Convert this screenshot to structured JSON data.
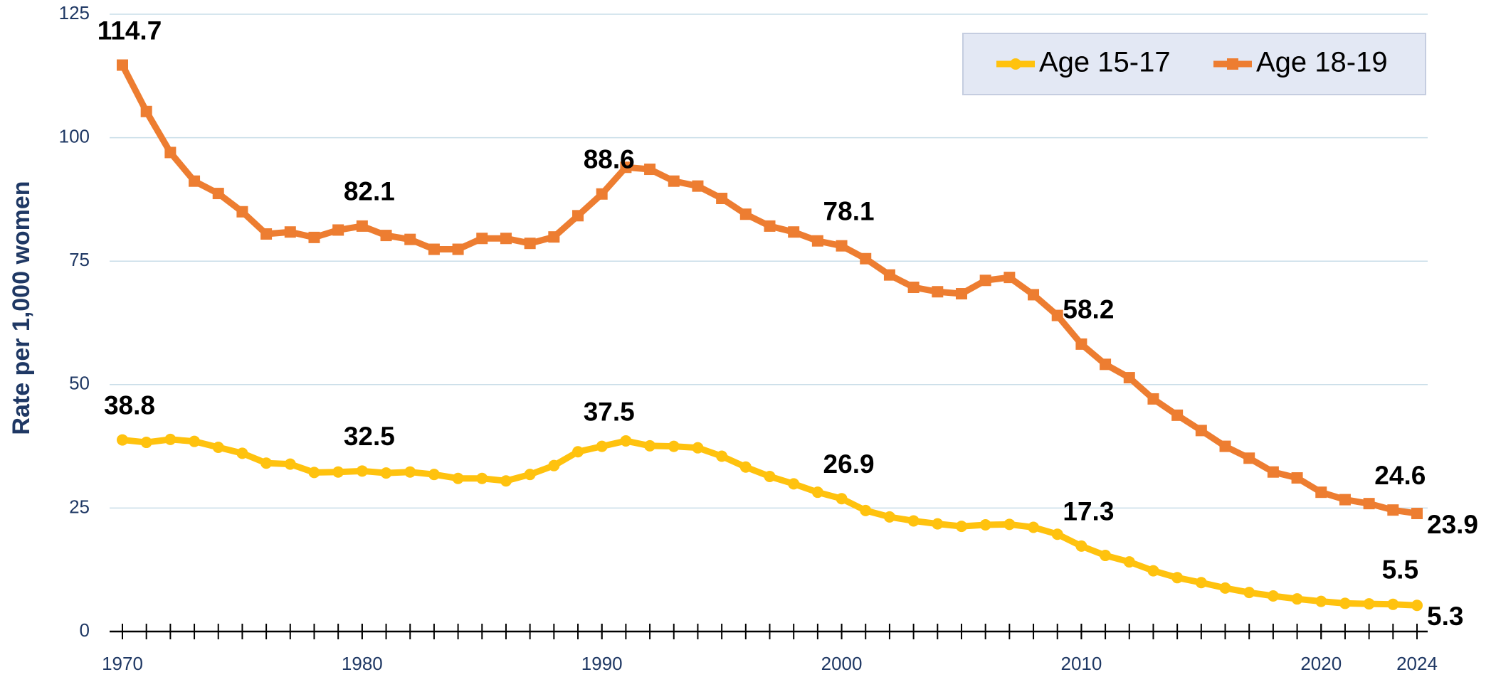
{
  "chart_data": {
    "type": "line",
    "y_label": "Rate per 1,000 women",
    "x": [
      1970,
      1971,
      1972,
      1973,
      1974,
      1975,
      1976,
      1977,
      1978,
      1979,
      1980,
      1981,
      1982,
      1983,
      1984,
      1985,
      1986,
      1987,
      1988,
      1989,
      1990,
      1991,
      1992,
      1993,
      1994,
      1995,
      1996,
      1997,
      1998,
      1999,
      2000,
      2001,
      2002,
      2003,
      2004,
      2005,
      2006,
      2007,
      2008,
      2009,
      2010,
      2011,
      2012,
      2013,
      2014,
      2015,
      2016,
      2017,
      2018,
      2019,
      2020,
      2021,
      2022,
      2023,
      2024
    ],
    "series": [
      {
        "name": "Age 15-17",
        "color": "#FFC20E",
        "marker": "circle",
        "values": [
          38.8,
          38.3,
          38.9,
          38.5,
          37.3,
          36.1,
          34.1,
          33.9,
          32.2,
          32.3,
          32.5,
          32.1,
          32.3,
          31.8,
          31.0,
          31.0,
          30.5,
          31.8,
          33.6,
          36.4,
          37.5,
          38.6,
          37.6,
          37.5,
          37.2,
          35.5,
          33.3,
          31.4,
          29.9,
          28.2,
          26.9,
          24.5,
          23.2,
          22.4,
          21.8,
          21.3,
          21.6,
          21.7,
          21.1,
          19.7,
          17.3,
          15.4,
          14.1,
          12.3,
          10.9,
          9.9,
          8.8,
          7.9,
          7.2,
          6.6,
          6.1,
          5.7,
          5.6,
          5.5,
          5.3
        ],
        "value_labels": [
          "38.8",
          null,
          null,
          null,
          null,
          null,
          null,
          null,
          null,
          null,
          "32.5",
          null,
          null,
          null,
          null,
          null,
          null,
          null,
          null,
          null,
          "37.5",
          null,
          null,
          null,
          null,
          null,
          null,
          null,
          null,
          null,
          "26.9",
          null,
          null,
          null,
          null,
          null,
          null,
          null,
          null,
          null,
          "17.3",
          null,
          null,
          null,
          null,
          null,
          null,
          null,
          null,
          null,
          null,
          null,
          null,
          "5.5",
          "5.3"
        ]
      },
      {
        "name": "Age 18-19",
        "color": "#ED7D31",
        "marker": "square",
        "values": [
          114.7,
          105.3,
          97.0,
          91.2,
          88.7,
          85.0,
          80.5,
          80.9,
          79.8,
          81.3,
          82.1,
          80.2,
          79.4,
          77.4,
          77.4,
          79.6,
          79.6,
          78.6,
          79.9,
          84.2,
          88.6,
          94.0,
          93.6,
          91.2,
          90.2,
          87.7,
          84.5,
          82.1,
          80.9,
          79.1,
          78.1,
          75.5,
          72.2,
          69.7,
          68.8,
          68.4,
          71.1,
          71.7,
          68.2,
          64.0,
          58.2,
          54.1,
          51.4,
          47.1,
          43.8,
          40.7,
          37.5,
          35.1,
          32.3,
          31.1,
          28.2,
          26.7,
          25.9,
          24.6,
          23.9
        ],
        "value_labels": [
          "114.7",
          null,
          null,
          null,
          null,
          null,
          null,
          null,
          null,
          null,
          "82.1",
          null,
          null,
          null,
          null,
          null,
          null,
          null,
          null,
          null,
          "88.6",
          null,
          null,
          null,
          null,
          null,
          null,
          null,
          null,
          null,
          "78.1",
          null,
          null,
          null,
          null,
          null,
          null,
          null,
          null,
          null,
          "58.2",
          null,
          null,
          null,
          null,
          null,
          null,
          null,
          null,
          null,
          null,
          null,
          null,
          "24.6",
          "23.9"
        ]
      }
    ],
    "xlim": [
      1970,
      2024
    ],
    "xticks": [
      1970,
      1980,
      1990,
      2000,
      2010,
      2020,
      2024
    ],
    "ylim": [
      0,
      125
    ],
    "yticks": [
      0,
      25,
      50,
      75,
      100,
      125
    ],
    "grid": true,
    "legend": "top-right"
  }
}
